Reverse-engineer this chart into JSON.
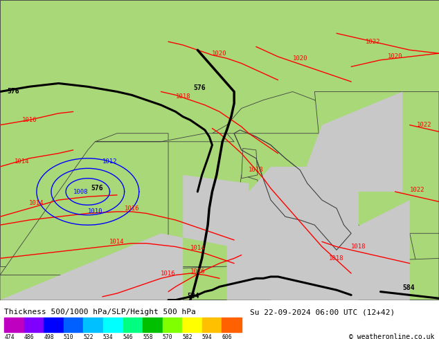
{
  "title_left": "Thickness 500/1000 hPa/SLP/Height 500 hPa",
  "title_right": "Su 22-09-2024 06:00 UTC (12+42)",
  "copyright": "© weatheronline.co.uk",
  "colorbar_values": [
    474,
    486,
    498,
    510,
    522,
    534,
    546,
    558,
    570,
    582,
    594,
    606
  ],
  "colorbar_colors": [
    "#c000c0",
    "#8000ff",
    "#0000ff",
    "#0060ff",
    "#00c0ff",
    "#00ffff",
    "#00ff80",
    "#00c000",
    "#80ff00",
    "#ffff00",
    "#ffc000",
    "#ff6000"
  ],
  "land_color": "#a8d878",
  "sea_color": "#c8c8c8",
  "border_color": "#404040",
  "fig_width": 6.34,
  "fig_height": 4.9,
  "dpi": 100,
  "map_extent": [
    -8.0,
    22.0,
    34.0,
    52.0
  ]
}
